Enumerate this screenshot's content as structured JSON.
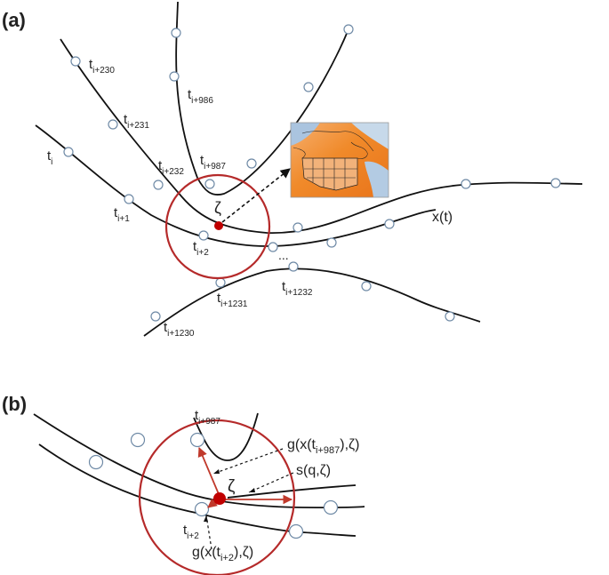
{
  "panel_a": {
    "label": "(a)",
    "time_labels": [
      {
        "base": "t",
        "sub": "i+230"
      },
      {
        "base": "t",
        "sub": "i+231"
      },
      {
        "base": "t",
        "sub": "i+232"
      },
      {
        "base": "t",
        "sub": "i"
      },
      {
        "base": "t",
        "sub": "i+1"
      },
      {
        "base": "t",
        "sub": "i+2"
      },
      {
        "base": "t",
        "sub": "i+986"
      },
      {
        "base": "t",
        "sub": "i+987"
      },
      {
        "base": "t",
        "sub": "i+1231"
      },
      {
        "base": "t",
        "sub": "i+1232"
      },
      {
        "base": "t",
        "sub": "i+1230"
      }
    ],
    "zeta": "ζ",
    "trajectory_label": "x(t)",
    "ellipsis": "...",
    "inset": "map-of-north-america-temperature-field"
  },
  "panel_b": {
    "label": "(b)",
    "zeta": "ζ",
    "t_top": {
      "base": "t",
      "sub": "i+987"
    },
    "t_bottom": {
      "base": "t",
      "sub": "i+2"
    },
    "g_top": {
      "pre": "g(x(t",
      "sub": "i+987",
      "post": "),ζ)"
    },
    "s": "s(q,ζ)",
    "g_bottom": {
      "pre": "g(x(t",
      "sub": "i+2",
      "post": "),ζ)"
    }
  },
  "colors": {
    "circle": "#b52a2a",
    "zeta_point": "#c00000",
    "arrow_red": "#c0392b",
    "node_stroke": "#6f8aa6",
    "map_orange": "#f08a2a",
    "map_blue": "#aac4df"
  }
}
